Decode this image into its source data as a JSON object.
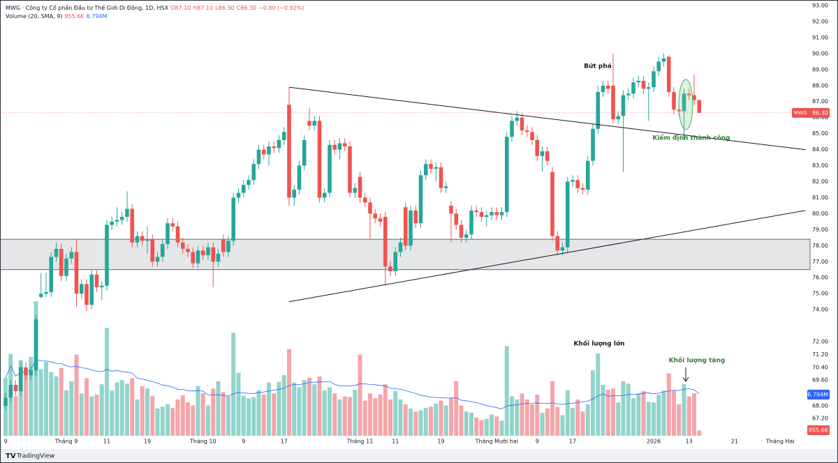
{
  "chart_data": {
    "type": "candlestick",
    "title": "MWG · Công ty Cổ phần Đầu tư Thế Giới Di Động, 1D, HSX",
    "ohlc_header": [
      "O87.10",
      "H87.10",
      "L86.30",
      "C86.30",
      "−0.80 (−0.92%)"
    ],
    "volume_title": "Volume (20, SMA, 9)",
    "volume_tags": [
      {
        "value": 0.8556,
        "label": "855.6K"
      },
      {
        "value": 6.794,
        "label": "6.794M"
      }
    ],
    "price_tag": {
      "symbol": "MWG",
      "value": 86.3,
      "label": "86.30"
    },
    "annotations": [
      "Bứt phá",
      "Kiểm định thành công",
      "Khối lượng lớn",
      "Khối lượng tăng"
    ],
    "brand": "TradingView",
    "categories": [
      "9",
      null,
      null,
      null,
      null,
      null,
      null,
      null,
      null,
      null,
      null,
      null,
      "Tháng 9",
      null,
      null,
      null,
      null,
      null,
      null,
      null,
      "11",
      null,
      null,
      null,
      null,
      null,
      null,
      null,
      "19",
      null,
      null,
      null,
      null,
      null,
      null,
      null,
      null,
      null,
      null,
      "Tháng 10",
      null,
      null,
      null,
      null,
      null,
      null,
      null,
      "9",
      null,
      null,
      null,
      null,
      null,
      null,
      null,
      "17",
      null,
      null,
      null,
      null,
      null,
      null,
      null,
      null,
      null,
      null,
      null,
      null,
      null,
      null,
      "Tháng 11",
      null,
      null,
      null,
      null,
      null,
      null,
      "11",
      null,
      null,
      null,
      null,
      null,
      null,
      null,
      null,
      "19",
      null,
      null,
      null,
      null,
      null,
      null,
      null,
      null,
      null,
      null,
      "Tháng Mười hai",
      null,
      null,
      null,
      null,
      null,
      null,
      null,
      "9",
      null,
      null,
      null,
      null,
      null,
      null,
      "17",
      null,
      null,
      null,
      null,
      null,
      null,
      null,
      null,
      null,
      null,
      null,
      null,
      null,
      null,
      null,
      "2026",
      null,
      null,
      null,
      null,
      null,
      null,
      "13",
      null,
      null,
      null,
      null,
      null,
      null,
      null,
      null,
      "21",
      null,
      null,
      null,
      null,
      null,
      null,
      null,
      null,
      "Tháng Hai"
    ],
    "open": [
      68.0,
      68.5,
      69.3,
      68.9,
      70.4,
      69.9,
      70.2,
      74.8,
      75.0,
      75.1,
      77.3,
      77.8,
      76.1,
      77.2,
      77.6,
      75.0,
      75.6,
      74.3,
      76.2,
      75.4,
      75.5,
      79.3,
      79.5,
      79.6,
      79.8,
      80.3,
      78.2,
      78.6,
      78.3,
      78.4,
      77.0,
      77.3,
      78.1,
      79.4,
      79.2,
      78.2,
      77.8,
      77.6,
      76.9,
      77.7,
      77.4,
      77.9,
      77.0,
      78.4,
      77.6,
      78.3,
      81.0,
      81.3,
      81.8,
      82.1,
      83.1,
      84.0,
      83.7,
      84.2,
      84.1,
      84.6,
      86.8,
      81.0,
      81.5,
      83.0,
      85.8,
      85.5,
      85.8,
      81.0,
      81.3,
      84.3,
      84.0,
      84.4,
      84.2,
      81.3,
      82.3,
      81.0,
      80.7,
      80.0,
      79.7,
      79.8,
      76.7,
      76.4,
      77.6,
      80.4,
      78.0,
      80.2,
      79.4,
      82.4,
      83.1,
      82.8,
      82.9,
      81.6,
      80.5,
      80.0,
      79.3,
      78.5,
      78.7,
      80.2,
      80.1,
      79.8,
      79.9,
      80.1,
      79.9,
      80.1,
      84.8,
      85.8,
      86.0,
      85.2,
      85.1,
      84.6,
      83.6,
      83.9,
      82.6,
      78.6,
      77.7,
      77.9,
      82.0,
      82.1,
      81.6,
      81.5,
      83.3,
      85.3,
      87.6,
      88.0,
      88.0,
      85.9,
      86.1,
      87.4,
      87.5,
      88.2,
      88.3,
      87.8,
      87.9,
      88.9,
      89.5,
      89.8,
      87.6,
      86.5,
      86.4,
      87.5,
      87.4,
      87.1,
      null,
      null,
      null,
      null,
      null,
      null,
      null,
      null,
      null,
      null,
      null,
      null,
      null,
      null,
      null,
      null
    ],
    "high": [
      68.8,
      69.6,
      69.6,
      70.7,
      70.7,
      70.5,
      73.7,
      76.3,
      76.3,
      77.6,
      78.2,
      78.1,
      77.5,
      77.9,
      78.4,
      75.9,
      75.9,
      76.5,
      76.5,
      75.8,
      79.6,
      79.8,
      80.4,
      80.1,
      81.4,
      80.6,
      78.9,
      78.9,
      79.2,
      78.7,
      77.6,
      78.4,
      79.7,
      79.7,
      79.5,
      78.5,
      78.1,
      77.9,
      78.0,
      78.0,
      78.2,
      78.2,
      77.8,
      78.7,
      78.6,
      81.3,
      81.6,
      82.1,
      82.4,
      83.4,
      84.3,
      84.3,
      84.5,
      84.5,
      84.9,
      85.4,
      87.9,
      81.8,
      83.3,
      84.9,
      86.6,
      86.1,
      86.1,
      81.6,
      84.6,
      84.6,
      84.7,
      84.7,
      84.5,
      81.9,
      82.6,
      81.3,
      81.0,
      80.3,
      80.0,
      80.1,
      77.0,
      77.9,
      78.5,
      80.7,
      80.5,
      80.5,
      82.7,
      83.4,
      83.4,
      83.2,
      83.2,
      82.0,
      80.8,
      80.3,
      79.6,
      79.0,
      80.5,
      80.5,
      80.4,
      80.2,
      80.4,
      80.4,
      80.4,
      85.1,
      86.1,
      86.4,
      86.3,
      85.5,
      85.4,
      84.9,
      84.2,
      84.2,
      82.9,
      78.9,
      78.2,
      82.3,
      82.4,
      82.4,
      81.9,
      83.6,
      85.6,
      88.0,
      88.3,
      88.3,
      90.0,
      86.4,
      87.7,
      87.8,
      88.5,
      88.6,
      88.6,
      88.2,
      89.2,
      89.8,
      90.0,
      89.9,
      87.9,
      86.8,
      87.8,
      87.8,
      88.7,
      87.1,
      null,
      null,
      null,
      null,
      null,
      null,
      null,
      null,
      null,
      null,
      null,
      null,
      null,
      null,
      null,
      null
    ],
    "low": [
      67.7,
      68.2,
      68.6,
      68.6,
      69.6,
      69.6,
      69.9,
      74.7,
      74.8,
      74.8,
      77.0,
      75.8,
      75.8,
      76.9,
      74.2,
      74.7,
      73.9,
      74.0,
      75.1,
      74.6,
      75.2,
      79.0,
      79.2,
      79.3,
      79.5,
      77.9,
      77.9,
      78.0,
      77.5,
      76.7,
      76.7,
      77.0,
      77.8,
      78.9,
      77.9,
      77.5,
      77.3,
      76.6,
      76.6,
      77.1,
      77.1,
      75.4,
      76.7,
      77.3,
      77.3,
      78.0,
      80.7,
      81.0,
      81.5,
      81.8,
      82.8,
      83.4,
      83.0,
      83.8,
      83.8,
      84.3,
      80.5,
      80.5,
      81.2,
      82.7,
      85.2,
      85.2,
      80.7,
      80.7,
      81.0,
      83.7,
      83.4,
      83.9,
      81.0,
      81.0,
      80.7,
      80.4,
      78.4,
      79.4,
      79.2,
      75.5,
      76.1,
      76.1,
      77.3,
      77.7,
      77.7,
      79.1,
      79.1,
      82.1,
      82.5,
      82.0,
      81.3,
      81.3,
      78.2,
      79.0,
      78.2,
      78.2,
      78.4,
      79.8,
      79.5,
      79.2,
      79.6,
      79.6,
      79.6,
      79.8,
      84.5,
      85.5,
      84.9,
      84.8,
      84.3,
      83.3,
      82.6,
      83.0,
      78.3,
      77.4,
      77.4,
      77.6,
      81.7,
      81.3,
      81.2,
      81.2,
      83.0,
      85.0,
      87.3,
      87.5,
      85.6,
      85.6,
      82.6,
      87.1,
      87.2,
      87.9,
      87.5,
      85.8,
      87.6,
      88.6,
      89.2,
      87.3,
      86.2,
      86.1,
      84.6,
      87.1,
      86.8,
      86.3,
      null,
      null,
      null,
      null,
      null,
      null,
      null,
      null,
      null,
      null,
      null,
      null,
      null,
      null,
      null,
      null
    ],
    "close": [
      68.5,
      69.3,
      68.9,
      70.4,
      69.9,
      70.2,
      73.4,
      75.0,
      75.1,
      77.3,
      77.8,
      76.1,
      77.2,
      77.6,
      75.0,
      75.6,
      74.3,
      76.2,
      75.4,
      75.5,
      79.3,
      79.5,
      79.6,
      79.8,
      80.3,
      78.2,
      78.6,
      78.3,
      78.4,
      77.0,
      77.3,
      78.1,
      79.4,
      79.2,
      78.2,
      77.8,
      77.6,
      76.9,
      77.7,
      77.4,
      77.9,
      77.0,
      77.5,
      77.6,
      78.3,
      81.0,
      81.3,
      81.8,
      82.1,
      83.1,
      84.0,
      83.7,
      84.2,
      84.1,
      84.6,
      85.1,
      81.0,
      81.5,
      83.0,
      84.6,
      85.5,
      85.8,
      81.0,
      81.3,
      84.3,
      84.0,
      84.4,
      84.2,
      81.3,
      81.6,
      81.0,
      80.7,
      80.0,
      79.7,
      79.5,
      76.7,
      76.4,
      77.6,
      78.2,
      78.0,
      80.2,
      79.4,
      82.4,
      83.1,
      82.8,
      82.9,
      81.6,
      81.7,
      80.0,
      79.3,
      78.5,
      78.7,
      80.2,
      80.1,
      79.8,
      79.9,
      80.1,
      79.9,
      80.1,
      84.8,
      85.8,
      86.0,
      85.2,
      85.1,
      84.6,
      83.6,
      83.9,
      83.3,
      78.6,
      77.7,
      77.9,
      82.0,
      82.1,
      81.6,
      81.5,
      83.3,
      85.3,
      87.6,
      88.0,
      87.8,
      85.9,
      86.1,
      87.4,
      87.5,
      88.2,
      88.3,
      87.8,
      87.9,
      88.9,
      89.5,
      89.7,
      87.6,
      86.5,
      86.4,
      87.5,
      87.4,
      87.1,
      86.3,
      null,
      null,
      null,
      null,
      null,
      null,
      null,
      null,
      null,
      null,
      null,
      null,
      null,
      null,
      null,
      null
    ],
    "volume": [
      9.5,
      13.5,
      6.5,
      12.5,
      10.8,
      13.0,
      22.2,
      11.0,
      12.2,
      10.5,
      9.8,
      11.2,
      7.5,
      9.0,
      13.4,
      7.0,
      9.5,
      6.5,
      6.8,
      8.5,
      17.8,
      7.5,
      8.8,
      9.2,
      8.6,
      9.5,
      6.0,
      8.2,
      7.8,
      6.6,
      4.5,
      4.8,
      5.2,
      4.6,
      6.0,
      6.7,
      5.5,
      5.0,
      8.2,
      7.0,
      5.0,
      7.8,
      9.0,
      7.2,
      6.5,
      17.0,
      10.4,
      6.6,
      6.2,
      6.4,
      7.5,
      6.8,
      8.8,
      7.0,
      8.9,
      10.0,
      14.3,
      8.8,
      8.0,
      9.2,
      9.6,
      8.5,
      9.8,
      7.5,
      8.0,
      7.0,
      6.0,
      6.5,
      6.4,
      7.6,
      13.4,
      5.8,
      7.0,
      6.2,
      6.8,
      8.5,
      6.0,
      7.4,
      6.0,
      5.2,
      4.5,
      4.0,
      4.2,
      4.6,
      4.8,
      5.3,
      5.8,
      5.0,
      6.3,
      9.0,
      5.0,
      4.0,
      3.8,
      3.0,
      2.6,
      2.8,
      3.5,
      3.2,
      2.5,
      14.8,
      6.5,
      6.0,
      7.0,
      6.0,
      5.2,
      6.8,
      3.8,
      4.5,
      9.0,
      4.8,
      3.4,
      7.5,
      4.6,
      6.0,
      4.0,
      5.2,
      10.8,
      13.6,
      8.4,
      7.6,
      7.8,
      5.5,
      9.0,
      8.6,
      6.2,
      7.0,
      7.4,
      5.6,
      5.5,
      6.8,
      7.5,
      10.3,
      7.4,
      5.2,
      8.5,
      6.5,
      7.0,
      0.8556,
      null,
      null,
      null,
      null,
      null,
      null,
      null,
      null,
      null,
      null,
      null,
      null,
      null,
      null,
      null,
      null
    ],
    "up_color": "#26a69a",
    "down_color": "#ef5350",
    "volume_up_color": "#92d4cb",
    "volume_down_color": "#f5a5aa",
    "sma_color": "#2962ff",
    "zone": [
      76.5,
      78.4
    ],
    "trendlines": [
      {
        "x": [
          56,
          158
        ],
        "y": [
          87.9,
          84.0
        ]
      },
      {
        "x": [
          56,
          158
        ],
        "y": [
          74.5,
          80.2
        ]
      }
    ],
    "ylim": [
      66.12,
      93.35
    ],
    "yticks": [
      {
        "value": 93,
        "label": "93.00"
      },
      {
        "value": 92,
        "label": "92.00"
      },
      {
        "value": 91,
        "label": "91.00"
      },
      {
        "value": 90,
        "label": "90.00"
      },
      {
        "value": 89,
        "label": "89.00"
      },
      {
        "value": 88,
        "label": "88.00"
      },
      {
        "value": 87,
        "label": "87.00"
      },
      {
        "value": 86,
        "label": "86.00"
      },
      {
        "value": 85,
        "label": "85.00"
      },
      {
        "value": 84,
        "label": "84.00"
      },
      {
        "value": 83,
        "label": "83.00"
      },
      {
        "value": 82,
        "label": "82.00"
      },
      {
        "value": 81,
        "label": "81.00"
      },
      {
        "value": 80,
        "label": "80.00"
      },
      {
        "value": 79,
        "label": "79.00"
      },
      {
        "value": 78,
        "label": "78.00"
      },
      {
        "value": 77,
        "label": "77.00"
      },
      {
        "value": 76,
        "label": "76.00"
      },
      {
        "value": 75,
        "label": "75.00"
      },
      {
        "value": 74,
        "label": "74.00"
      },
      {
        "value": 72,
        "label": "72.00"
      },
      {
        "value": 71.2,
        "label": "71.20"
      },
      {
        "value": 70.4,
        "label": "70.40"
      },
      {
        "value": 69.6,
        "label": "69.60"
      },
      {
        "value": 68.8,
        "label": "68.80"
      },
      {
        "value": 68,
        "label": "68.00"
      },
      {
        "value": 67.2,
        "label": "67.20"
      }
    ],
    "grid": false
  }
}
